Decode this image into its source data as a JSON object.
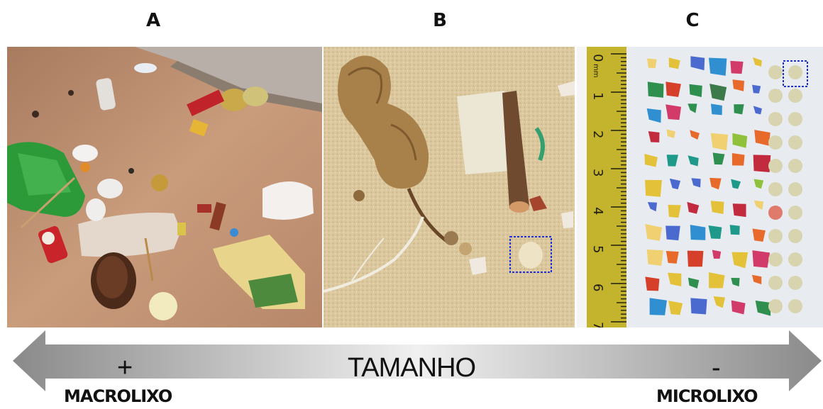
{
  "panels": [
    {
      "label": "A",
      "caption_key": "beach-macro-litter"
    },
    {
      "label": "B",
      "caption_key": "sand-meso-litter"
    },
    {
      "label": "C",
      "caption_key": "micro-litter-ruler"
    }
  ],
  "arrow": {
    "center_text": "TAMANHO",
    "left_sign": "+",
    "right_sign": "-",
    "left_label": "MACROLIXO",
    "right_label": "MICROLIXO"
  },
  "ruler": {
    "unit": "mm",
    "ticks": [
      "0",
      "1",
      "2",
      "3",
      "4",
      "5",
      "6",
      "7"
    ]
  },
  "colors": {
    "sand_a": "#c79b7a",
    "sand_b": "#d8c49a",
    "ruler_yellow": "#c4b32c",
    "highlight_box": "#1f2fd6"
  }
}
